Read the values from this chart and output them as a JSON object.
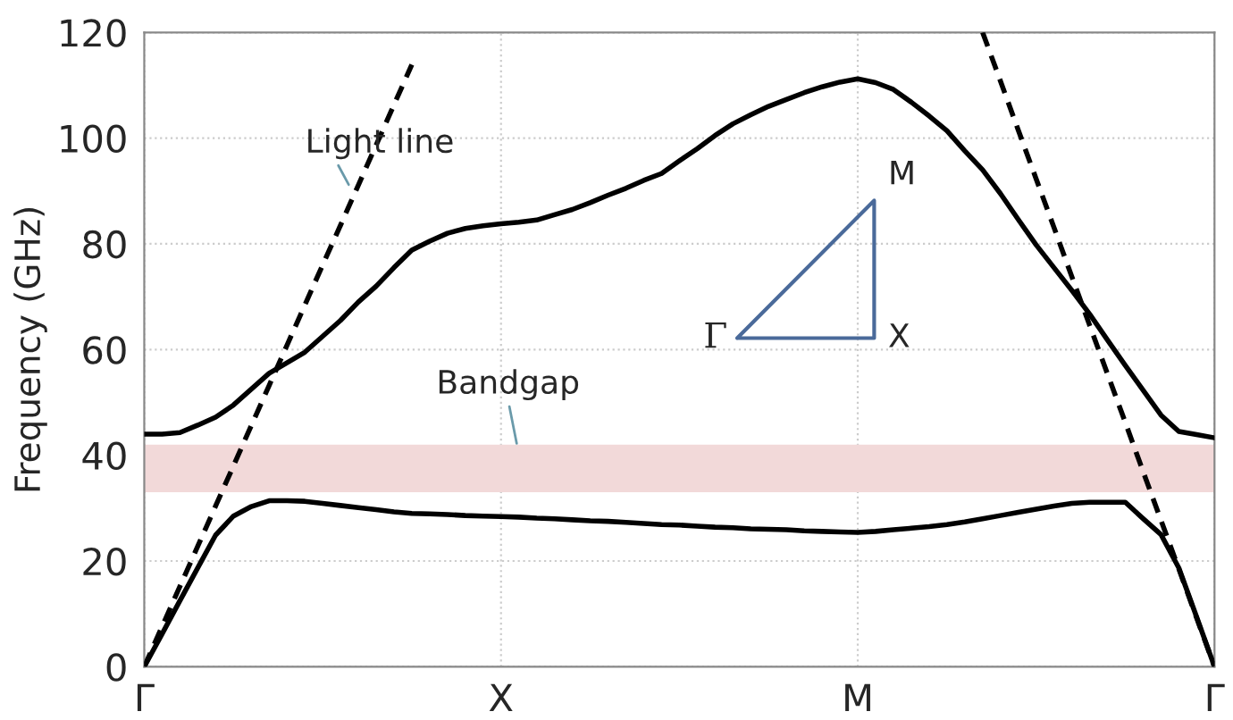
{
  "chart_data": {
    "type": "line",
    "ylabel": "Frequency (GHz)",
    "categories": [
      "Γ",
      null,
      null,
      null,
      null,
      null,
      null,
      null,
      null,
      null,
      null,
      null,
      null,
      null,
      null,
      null,
      null,
      null,
      null,
      null,
      "X",
      null,
      null,
      null,
      null,
      null,
      null,
      null,
      null,
      null,
      null,
      null,
      null,
      null,
      null,
      null,
      null,
      null,
      null,
      null,
      "M",
      null,
      null,
      null,
      null,
      null,
      null,
      null,
      null,
      null,
      null,
      null,
      null,
      null,
      null,
      null,
      null,
      null,
      null,
      null,
      "Γ"
    ],
    "ylim": [
      0,
      120
    ],
    "yticks": [
      0,
      20,
      40,
      60,
      80,
      100,
      120
    ],
    "grid": true,
    "marker": "none",
    "series": [
      {
        "color": "#000000",
        "line_style": "solid",
        "values": [
          44,
          44,
          44.3,
          45.7,
          47.2,
          49.5,
          52.5,
          55.5,
          57.5,
          59.5,
          62.5,
          65.5,
          69,
          72,
          75.5,
          78.8,
          80.5,
          82,
          82.9,
          83.4,
          83.8,
          84.1,
          84.5,
          85.5,
          86.5,
          87.8,
          89.2,
          90.5,
          92,
          93.3,
          95.7,
          98,
          100.5,
          102.7,
          104.4,
          106,
          107.3,
          108.6,
          109.7,
          110.6,
          111.2,
          110.5,
          109.2,
          106.8,
          104.2,
          101.4,
          97.6,
          94,
          89.5,
          84.6,
          79.8,
          75.5,
          71.2,
          66.7,
          61.8,
          57,
          52.3,
          47.6,
          44.5,
          43.9,
          43.3
        ]
      },
      {
        "color": "#000000",
        "line_style": "solid",
        "values": [
          0,
          6.2,
          12.5,
          18.7,
          24.9,
          28.5,
          30.3,
          31.4,
          31.4,
          31.3,
          30.9,
          30.5,
          30.1,
          29.7,
          29.3,
          29,
          28.9,
          28.8,
          28.6,
          28.5,
          28.4,
          28.3,
          28.1,
          28,
          27.8,
          27.6,
          27.5,
          27.3,
          27.1,
          26.9,
          26.8,
          26.6,
          26.4,
          26.3,
          26.1,
          26,
          25.9,
          25.7,
          25.6,
          25.5,
          25.4,
          25.6,
          25.9,
          26.2,
          26.5,
          26.9,
          27.4,
          28,
          28.6,
          29.2,
          29.8,
          30.4,
          30.9,
          31.1,
          31.1,
          31.1,
          28,
          25,
          18.7,
          9.4,
          0
        ]
      },
      {
        "color": "#000000",
        "line_style": "dashed",
        "values": [
          0,
          7.6,
          15.2,
          22.8,
          30.4,
          38,
          45.6,
          53.2,
          60.8,
          68.4,
          76,
          83.5,
          91.1,
          98.7,
          106.3,
          113.9,
          null,
          null,
          null,
          null,
          null,
          null,
          null,
          null,
          null,
          null,
          null,
          null,
          null,
          null,
          null,
          null,
          null,
          null,
          null,
          null,
          null,
          null,
          null,
          null,
          null,
          null,
          null,
          null,
          null,
          null,
          null,
          null,
          null,
          null,
          null,
          null,
          null,
          null,
          null,
          null,
          null,
          null,
          null,
          null,
          null
        ]
      },
      {
        "color": "#000000",
        "line_style": "dashed",
        "values": [
          null,
          null,
          null,
          null,
          null,
          null,
          null,
          null,
          null,
          null,
          null,
          null,
          null,
          null,
          null,
          null,
          null,
          null,
          null,
          null,
          null,
          null,
          null,
          null,
          null,
          null,
          null,
          null,
          null,
          null,
          null,
          null,
          null,
          null,
          null,
          null,
          null,
          null,
          null,
          null,
          null,
          null,
          null,
          null,
          null,
          null,
          null,
          120,
          110.8,
          101.5,
          92.3,
          83.1,
          73.8,
          64.6,
          55.4,
          46.2,
          36.9,
          27.7,
          18.5,
          9.2,
          0
        ]
      }
    ],
    "bands": [
      {
        "axis": "y",
        "from": 33,
        "to": 42,
        "color": "#f2d9d9"
      }
    ],
    "annotations": [
      "Light line",
      "Bandgap",
      "Γ",
      "X",
      "M"
    ]
  }
}
